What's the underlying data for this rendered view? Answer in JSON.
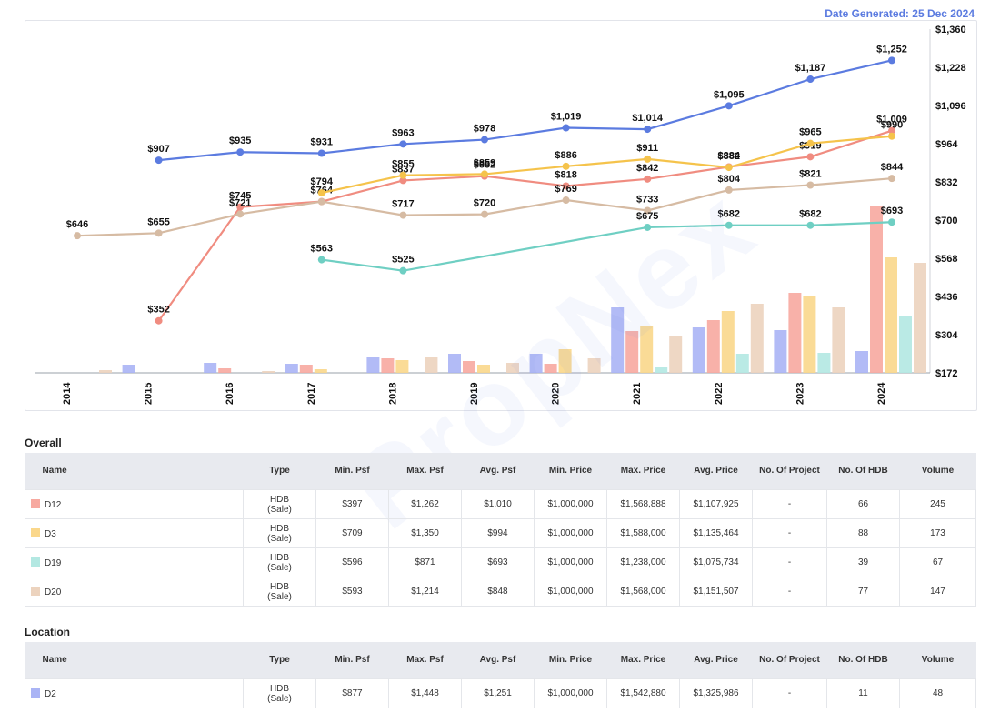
{
  "header": {
    "date_generated": "Date Generated: 25 Dec 2024"
  },
  "chart_data": {
    "type": "bar",
    "combo": "bars with overlaid lines",
    "categories": [
      "2014",
      "2015",
      "2016",
      "2017",
      "2018",
      "2019",
      "2020",
      "2021",
      "2022",
      "2023",
      "2024"
    ],
    "y_axis": {
      "position": "right",
      "ticks": [
        "$1,360",
        "$1,228",
        "$1,096",
        "$964",
        "$832",
        "$700",
        "$568",
        "$436",
        "$304",
        "$172"
      ],
      "ylim": [
        172,
        1360
      ]
    },
    "grid": false,
    "legend": "none",
    "bar_series": [
      {
        "color": "#aab4f5",
        "values": [
          0,
          9,
          11,
          10,
          17,
          21,
          21,
          72,
          50,
          47,
          24
        ]
      },
      {
        "color": "#f7a9a0",
        "values": [
          0,
          0,
          5,
          9,
          16,
          13,
          10,
          46,
          58,
          88,
          183
        ]
      },
      {
        "color": "#fad78b",
        "values": [
          0,
          0,
          0,
          4,
          14,
          9,
          26,
          51,
          68,
          85,
          127
        ]
      },
      {
        "color": "#b3e8e2",
        "values": [
          0,
          0,
          0,
          0,
          0,
          0,
          0,
          7,
          21,
          22,
          62
        ]
      },
      {
        "color": "#ecd3be",
        "values": [
          3,
          0,
          2,
          0,
          17,
          11,
          16,
          40,
          76,
          72,
          121
        ]
      }
    ],
    "line_series": [
      {
        "color": "#5b7be0",
        "label_color": "#222",
        "values": [
          null,
          907,
          935,
          931,
          963,
          978,
          1019,
          1014,
          1095,
          1187,
          1252
        ],
        "labels": [
          null,
          "$907",
          "$935",
          "$931",
          "$963",
          "$978",
          "$1,019",
          "$1,014",
          "$1,095",
          "$1,187",
          "$1,252"
        ]
      },
      {
        "color": "#f08c80",
        "values": [
          null,
          352,
          745,
          764,
          837,
          852,
          818,
          842,
          884,
          919,
          1009
        ],
        "labels": [
          null,
          "$352",
          "$745",
          "$764",
          "$837",
          "$852",
          "$818",
          "$842",
          "$884",
          "$919",
          "$1,009"
        ]
      },
      {
        "color": "#f5c34b",
        "values": [
          null,
          null,
          null,
          794,
          855,
          859,
          886,
          911,
          882,
          965,
          990
        ],
        "labels": [
          null,
          null,
          null,
          "$794",
          "$855",
          "$859",
          "$886",
          "$911",
          "$882",
          "$965",
          "$990"
        ]
      },
      {
        "color": "#d6bba3",
        "values": [
          646,
          655,
          721,
          764,
          717,
          720,
          769,
          733,
          804,
          821,
          844
        ],
        "labels": [
          "$646",
          "$655",
          "$721",
          null,
          "$717",
          "$720",
          "$769",
          "$733",
          "$804",
          "$821",
          "$844"
        ]
      },
      {
        "color": "#6fcfc3",
        "values": [
          null,
          null,
          null,
          563,
          525,
          null,
          null,
          675,
          682,
          682,
          693
        ],
        "labels": [
          null,
          null,
          null,
          "$563",
          "$525",
          null,
          null,
          "$675",
          "$682",
          "$682",
          "$693"
        ]
      }
    ]
  },
  "overall": {
    "title": "Overall",
    "headers": [
      "Name",
      "Type",
      "Min. Psf",
      "Max. Psf",
      "Avg. Psf",
      "Min. Price",
      "Max. Price",
      "Avg. Price",
      "No. Of Project",
      "No. Of HDB",
      "Volume"
    ],
    "rows": [
      {
        "color": "#f7a9a0",
        "name": "D12",
        "type": "HDB (Sale)",
        "min_psf": "$397",
        "max_psf": "$1,262",
        "avg_psf": "$1,010",
        "min_price": "$1,000,000",
        "max_price": "$1,568,888",
        "avg_price": "$1,107,925",
        "projects": "-",
        "hdb": "66",
        "volume": "245"
      },
      {
        "color": "#fad78b",
        "name": "D3",
        "type": "HDB (Sale)",
        "min_psf": "$709",
        "max_psf": "$1,350",
        "avg_psf": "$994",
        "min_price": "$1,000,000",
        "max_price": "$1,588,000",
        "avg_price": "$1,135,464",
        "projects": "-",
        "hdb": "88",
        "volume": "173"
      },
      {
        "color": "#b3e8e2",
        "name": "D19",
        "type": "HDB (Sale)",
        "min_psf": "$596",
        "max_psf": "$871",
        "avg_psf": "$693",
        "min_price": "$1,000,000",
        "max_price": "$1,238,000",
        "avg_price": "$1,075,734",
        "projects": "-",
        "hdb": "39",
        "volume": "67"
      },
      {
        "color": "#ecd3be",
        "name": "D20",
        "type": "HDB (Sale)",
        "min_psf": "$593",
        "max_psf": "$1,214",
        "avg_psf": "$848",
        "min_price": "$1,000,000",
        "max_price": "$1,568,000",
        "avg_price": "$1,151,507",
        "projects": "-",
        "hdb": "77",
        "volume": "147"
      }
    ]
  },
  "location": {
    "title": "Location",
    "headers": [
      "Name",
      "Type",
      "Min. Psf",
      "Max. Psf",
      "Avg. Psf",
      "Min. Price",
      "Max. Price",
      "Avg. Price",
      "No. Of Project",
      "No. Of HDB",
      "Volume"
    ],
    "rows": [
      {
        "color": "#aab4f5",
        "name": "D2",
        "type": "HDB (Sale)",
        "min_psf": "$877",
        "max_psf": "$1,448",
        "avg_psf": "$1,251",
        "min_price": "$1,000,000",
        "max_price": "$1,542,880",
        "avg_price": "$1,325,986",
        "projects": "-",
        "hdb": "11",
        "volume": "48"
      }
    ]
  }
}
